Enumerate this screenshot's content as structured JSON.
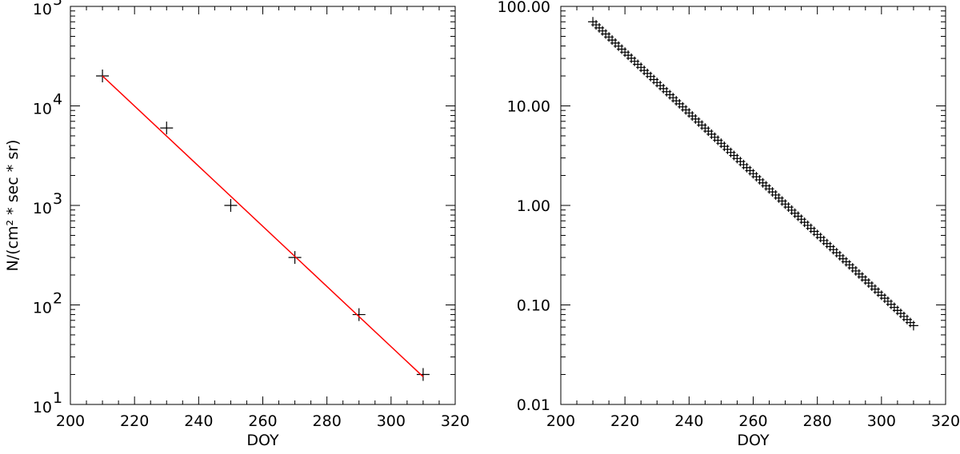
{
  "chart_data": [
    {
      "type": "scatter",
      "title": "",
      "xlabel": "DOY",
      "ylabel": "N/(cm² * sec * sr)",
      "xlim": [
        200,
        320
      ],
      "ylim": [
        10,
        100000
      ],
      "y_scale": "log",
      "grid": false,
      "x_ticks": [
        "200",
        "220",
        "240",
        "260",
        "280",
        "300",
        "320"
      ],
      "y_ticks": [
        {
          "value": 10,
          "base": "10",
          "exp": "1"
        },
        {
          "value": 100,
          "base": "10",
          "exp": "2"
        },
        {
          "value": 1000,
          "base": "10",
          "exp": "3"
        },
        {
          "value": 10000,
          "base": "10",
          "exp": "4"
        },
        {
          "value": 100000,
          "base": "10",
          "exp": "5"
        }
      ],
      "series": [
        {
          "marker": "+",
          "color": "#000000",
          "x": [
            210,
            230,
            250,
            270,
            290,
            310
          ],
          "y": [
            20000,
            6000,
            1000,
            300,
            80,
            20
          ]
        },
        {
          "style": "line",
          "color": "#ff0000",
          "x": [
            210,
            310
          ],
          "y": [
            20000,
            19
          ]
        }
      ]
    },
    {
      "type": "scatter",
      "title": "",
      "xlabel": "DOY",
      "ylabel": "",
      "xlim": [
        200,
        320
      ],
      "ylim": [
        0.01,
        100
      ],
      "y_scale": "log",
      "grid": false,
      "x_ticks": [
        "200",
        "220",
        "240",
        "260",
        "280",
        "300",
        "320"
      ],
      "y_ticks": [
        {
          "value": 0.01,
          "label": "0.01"
        },
        {
          "value": 0.1,
          "label": "0.10"
        },
        {
          "value": 1,
          "label": "1.00"
        },
        {
          "value": 10,
          "label": "10.00"
        },
        {
          "value": 100,
          "label": "100.00"
        }
      ],
      "series": [
        {
          "marker": "+",
          "color": "#000000",
          "x_start": 210,
          "x_end": 310,
          "x_step": 1,
          "y_start": 70,
          "y_end": 0.062
        }
      ]
    }
  ]
}
